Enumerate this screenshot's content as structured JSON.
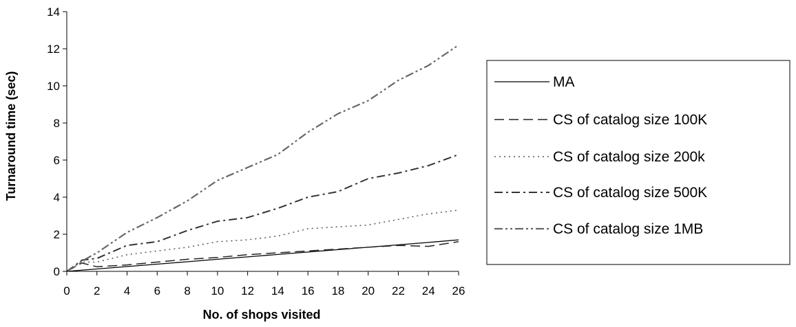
{
  "chart_data": {
    "type": "line",
    "xlabel": "No. of shops visited",
    "ylabel": "Turnaround time (sec)",
    "xlim": [
      0,
      26
    ],
    "ylim": [
      0,
      14
    ],
    "x_ticks": [
      0,
      2,
      4,
      6,
      8,
      10,
      12,
      14,
      16,
      18,
      20,
      22,
      24,
      26
    ],
    "y_ticks": [
      0,
      2,
      4,
      6,
      8,
      10,
      12,
      14
    ],
    "grid": false,
    "legend_position": "right",
    "series": [
      {
        "name": "MA",
        "style": "solid",
        "color": "#000000",
        "x": [
          0,
          2,
          4,
          6,
          8,
          10,
          12,
          14,
          16,
          18,
          20,
          22,
          24,
          26
        ],
        "y": [
          0,
          0.13,
          0.26,
          0.39,
          0.52,
          0.65,
          0.78,
          0.91,
          1.04,
          1.17,
          1.3,
          1.43,
          1.56,
          1.7
        ]
      },
      {
        "name": "CS of catalog size 100K",
        "style": "dashed",
        "color": "#222222",
        "x": [
          0,
          1,
          2,
          4,
          6,
          8,
          10,
          12,
          14,
          16,
          18,
          20,
          22,
          24,
          26
        ],
        "y": [
          0,
          0.45,
          0.25,
          0.35,
          0.5,
          0.65,
          0.75,
          0.9,
          1.0,
          1.1,
          1.2,
          1.3,
          1.4,
          1.35,
          1.6
        ]
      },
      {
        "name": "CS of catalog size 200k",
        "style": "dotted",
        "color": "#555555",
        "x": [
          0,
          1,
          2,
          4,
          6,
          8,
          10,
          12,
          14,
          16,
          18,
          20,
          22,
          24,
          26
        ],
        "y": [
          0,
          0.5,
          0.5,
          0.9,
          1.1,
          1.3,
          1.6,
          1.7,
          1.9,
          2.3,
          2.4,
          2.5,
          2.8,
          3.1,
          3.3
        ]
      },
      {
        "name": "CS of catalog size 500K",
        "style": "dash-dot",
        "color": "#333333",
        "x": [
          0,
          1,
          2,
          4,
          6,
          8,
          10,
          12,
          14,
          16,
          18,
          20,
          22,
          24,
          26
        ],
        "y": [
          0,
          0.6,
          0.7,
          1.4,
          1.6,
          2.2,
          2.7,
          2.9,
          3.4,
          4.0,
          4.3,
          5.0,
          5.3,
          5.7,
          6.3
        ]
      },
      {
        "name": "CS of catalog size 1MB",
        "style": "dash-dot-dot",
        "color": "#666666",
        "x": [
          0,
          1,
          2,
          4,
          6,
          8,
          10,
          12,
          14,
          16,
          18,
          20,
          22,
          24,
          26
        ],
        "y": [
          0,
          0.55,
          1.0,
          2.1,
          2.9,
          3.8,
          4.9,
          5.6,
          6.3,
          7.5,
          8.5,
          9.2,
          10.3,
          11.1,
          12.2
        ]
      }
    ]
  }
}
